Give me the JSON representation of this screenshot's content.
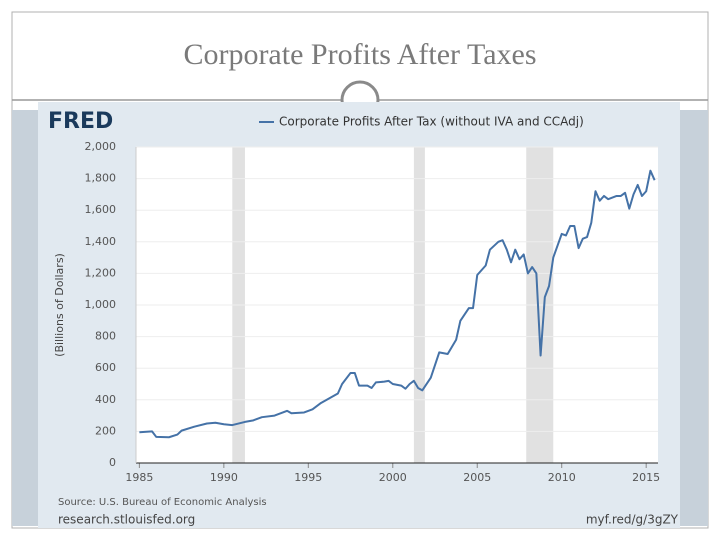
{
  "slide_title": "Corporate Profits After Taxes",
  "chart_data": {
    "type": "line",
    "logo": "FRED",
    "ylabel": "(Billions of Dollars)",
    "source": "Source: U.S. Bureau of Economic Analysis",
    "site": "research.stlouisfed.org",
    "link": "myf.red/g/3gZY",
    "x": [
      1985.0,
      1985.75,
      1986.0,
      1986.75,
      1987.25,
      1987.5,
      1988.25,
      1989.0,
      1989.5,
      1990.0,
      1990.5,
      1991.25,
      1991.75,
      1992.25,
      1993.0,
      1993.75,
      1994.0,
      1994.75,
      1995.25,
      1995.75,
      1996.25,
      1996.75,
      1997.0,
      1997.5,
      1997.75,
      1998.0,
      1998.5,
      1998.75,
      1999.0,
      1999.5,
      1999.75,
      2000.0,
      2000.5,
      2000.75,
      2001.0,
      2001.25,
      2001.5,
      2001.75,
      2002.25,
      2002.75,
      2003.25,
      2003.75,
      2004.0,
      2004.5,
      2004.75,
      2005.0,
      2005.5,
      2005.75,
      2006.25,
      2006.5,
      2006.75,
      2007.0,
      2007.25,
      2007.5,
      2007.75,
      2008.0,
      2008.25,
      2008.5,
      2008.75,
      2009.0,
      2009.25,
      2009.5,
      2010.0,
      2010.25,
      2010.5,
      2010.75,
      2011.0,
      2011.25,
      2011.5,
      2011.75,
      2012.0,
      2012.25,
      2012.5,
      2012.75,
      2013.25,
      2013.5,
      2013.75,
      2014.0,
      2014.25,
      2014.5,
      2014.75,
      2015.0,
      2015.25,
      2015.5
    ],
    "series": [
      {
        "name": "Corporate Profits After Tax (without IVA and CCAdj)",
        "color": "#4572a7",
        "values": [
          195,
          200,
          165,
          163,
          180,
          205,
          230,
          250,
          255,
          245,
          240,
          260,
          270,
          290,
          300,
          330,
          315,
          320,
          340,
          380,
          410,
          440,
          500,
          570,
          570,
          490,
          490,
          475,
          510,
          515,
          520,
          500,
          490,
          470,
          500,
          520,
          475,
          460,
          540,
          700,
          690,
          780,
          900,
          980,
          980,
          1190,
          1250,
          1350,
          1400,
          1410,
          1350,
          1270,
          1350,
          1290,
          1320,
          1200,
          1240,
          1200,
          680,
          1050,
          1120,
          1300,
          1450,
          1440,
          1500,
          1500,
          1360,
          1420,
          1430,
          1520,
          1720,
          1660,
          1690,
          1670,
          1690,
          1690,
          1710,
          1610,
          1700,
          1760,
          1690,
          1720,
          1850,
          1790
        ]
      }
    ],
    "recessions": [
      [
        1990.5,
        1991.25
      ],
      [
        2001.25,
        2001.9
      ],
      [
        2007.9,
        2009.5
      ]
    ],
    "xlim": [
      1984.8,
      2015.7
    ],
    "xticks": [
      1985,
      1990,
      1995,
      2000,
      2005,
      2010,
      2015
    ],
    "ylim": [
      0,
      2000
    ],
    "yticks": [
      0,
      200,
      400,
      600,
      800,
      {
        "value": 1000,
        "label": "1,000"
      },
      {
        "value": 1200,
        "label": "1,200"
      },
      {
        "value": 1400,
        "label": "1,400"
      },
      {
        "value": 1600,
        "label": "1,600"
      },
      {
        "value": 1800,
        "label": "1,800"
      },
      {
        "value": 2000,
        "label": "2,000"
      }
    ],
    "grid": true,
    "recession_color": "#e1e1e1"
  }
}
